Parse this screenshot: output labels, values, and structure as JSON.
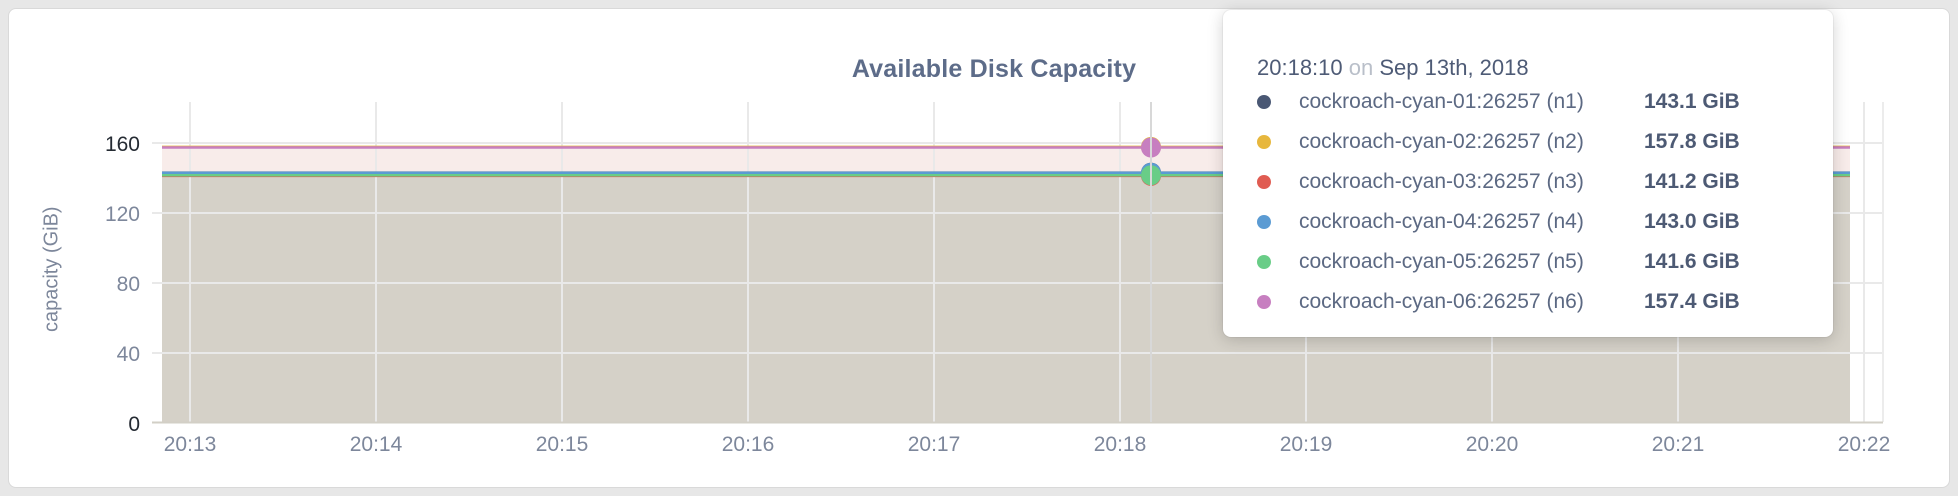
{
  "chart": {
    "title": "Available Disk Capacity",
    "y_axis": {
      "label": "capacity (GiB)",
      "ticks": [
        "160",
        "120",
        "80",
        "40",
        "0"
      ]
    },
    "x_axis": {
      "ticks": [
        "20:13",
        "20:14",
        "20:15",
        "20:16",
        "20:17",
        "20:18",
        "20:19",
        "20:20",
        "20:21",
        "20:22"
      ]
    },
    "fills": {
      "upper": "#f8ecea",
      "lower": "#d5d1c8"
    }
  },
  "tooltip": {
    "time": "20:18:10",
    "connector": "on",
    "date": "Sep 13th, 2018",
    "rows": [
      {
        "label": "cockroach-cyan-01:26257 (n1)",
        "value": "143.1 GiB",
        "color": "#4a5874"
      },
      {
        "label": "cockroach-cyan-02:26257 (n2)",
        "value": "157.8 GiB",
        "color": "#e7b73d"
      },
      {
        "label": "cockroach-cyan-03:26257 (n3)",
        "value": "141.2 GiB",
        "color": "#e05c52"
      },
      {
        "label": "cockroach-cyan-04:26257 (n4)",
        "value": "143.0 GiB",
        "color": "#5b9bd3"
      },
      {
        "label": "cockroach-cyan-05:26257 (n5)",
        "value": "141.6 GiB",
        "color": "#69cd87"
      },
      {
        "label": "cockroach-cyan-06:26257 (n6)",
        "value": "157.4 GiB",
        "color": "#c77fc0"
      }
    ]
  },
  "chart_data": {
    "type": "area",
    "title": "Available Disk Capacity",
    "ylabel": "capacity (GiB)",
    "ylim": [
      0,
      160
    ],
    "x_ticks": [
      "20:13",
      "20:14",
      "20:15",
      "20:16",
      "20:17",
      "20:18",
      "20:19",
      "20:20",
      "20:21",
      "20:22"
    ],
    "grid": true,
    "legend_position": "tooltip",
    "note": "Each node's available disk capacity is constant (flat line) across the 20:13-20:22 window; hover crosshair at 20:18:10",
    "hover": {
      "time": "20:18:10",
      "date": "Sep 13th, 2018"
    },
    "series": [
      {
        "name": "cockroach-cyan-01:26257 (n1)",
        "value_gib": 143.1,
        "color": "#4a5874"
      },
      {
        "name": "cockroach-cyan-02:26257 (n2)",
        "value_gib": 157.8,
        "color": "#e7b73d"
      },
      {
        "name": "cockroach-cyan-03:26257 (n3)",
        "value_gib": 141.2,
        "color": "#e05c52"
      },
      {
        "name": "cockroach-cyan-04:26257 (n4)",
        "value_gib": 143.0,
        "color": "#5b9bd3"
      },
      {
        "name": "cockroach-cyan-05:26257 (n5)",
        "value_gib": 141.6,
        "color": "#69cd87"
      },
      {
        "name": "cockroach-cyan-06:26257 (n6)",
        "value_gib": 157.4,
        "color": "#c77fc0"
      }
    ]
  }
}
